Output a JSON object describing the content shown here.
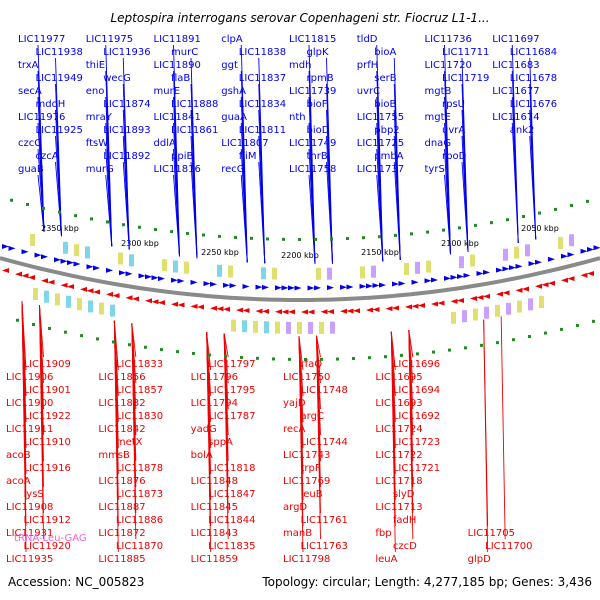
{
  "title": "Leptospira interrogans serovar Copenhageni str. Fiocruz L1-1...",
  "footer": {
    "accession": "Accession: NC_005823",
    "summary": "Topology: circular; Length: 4,277,185 bp; Genes: 3,436"
  },
  "colors": {
    "forward_strand": "#0000ee",
    "reverse_strand": "#ee0000",
    "rna_label": "#ee66cc",
    "backbone": "#8a8a8a",
    "tick_green": "#228b22"
  },
  "scale_labels": [
    "2350 kbp",
    "2300 kbp",
    "2250 kbp",
    "2200 kbp",
    "2150 kbp",
    "2100 kbp",
    "2050 kbp"
  ],
  "top_labels": [
    "LIC11977",
    "LIC11938",
    "trxA",
    "LIC11949",
    "secA",
    "mdoH",
    "LIC11976",
    "LIC11925",
    "czcC",
    "czcA",
    "guaB",
    "LIC11975",
    "LIC11936",
    "thiE",
    "wecG",
    "eno",
    "LIC11874",
    "mraY",
    "LIC11893",
    "ftsW",
    "LIC11892",
    "murG",
    "LIC11891",
    "murC",
    "LIC11890",
    "flaB",
    "murE",
    "LIC11888",
    "LIC11841",
    "LIC11861",
    "ddlA",
    "ppiB",
    "LIC11816",
    "clpA",
    "LIC11838",
    "ggt",
    "LIC11837",
    "gshA",
    "LIC11834",
    "guaA",
    "LIC11811",
    "LIC11807",
    "fliM",
    "recG",
    "LIC11815",
    "glpK",
    "mdh",
    "rpmB",
    "LIC11739",
    "bioF",
    "nth",
    "bioD",
    "LIC11749",
    "thrB",
    "LIC11758",
    "tldD",
    "bioA",
    "prfH",
    "serB",
    "uvrC",
    "bioB",
    "LIC11755",
    "pbp2",
    "LIC11725",
    "pmbA",
    "LIC11737",
    "LIC11736",
    "LIC11711",
    "LIC11720",
    "LIC11719",
    "mgtB",
    "rpsU",
    "mgtE",
    "uvrA",
    "dnaG",
    "rpoD",
    "tyrS",
    "LIC11697",
    "LIC11684",
    "LIC11683",
    "LIC11678",
    "LIC11677",
    "LIC11676",
    "LIC11674",
    "ank2"
  ],
  "bottom_labels": [
    "LIC11935",
    "LIC11920",
    "LIC11931",
    "LIC11912",
    "LIC11908",
    "lysS",
    "acoA",
    "LIC11916",
    "acoB",
    "LIC11910",
    "LIC11911",
    "LIC11922",
    "LIC11900",
    "LIC11901",
    "LIC11906",
    "LIC11909",
    "LIC11885",
    "LIC11870",
    "LIC11872",
    "LIC11886",
    "LIC11887",
    "LIC11873",
    "LIC11876",
    "LIC11878",
    "mmsB",
    "metX",
    "LIC11842",
    "LIC11830",
    "LIC11832",
    "LIC11857",
    "LIC11856",
    "LIC11833",
    "LIC11859",
    "LIC11835",
    "LIC11843",
    "LIC11844",
    "LIC11845",
    "LIC11847",
    "LIC11848",
    "LIC11818",
    "bolA",
    "sppA",
    "yadG",
    "LIC11787",
    "LIC11794",
    "LIC11795",
    "LIC11796",
    "LIC11797",
    "LIC11798",
    "LIC11763",
    "manB",
    "LIC11761",
    "argD",
    "leuB",
    "LIC11769",
    "trpF",
    "LIC11743",
    "LIC11744",
    "recA",
    "argC",
    "yajD",
    "LIC11748",
    "LIC11750",
    "rfaQ",
    "leuA",
    "czcD",
    "fbp",
    "fadH",
    "LIC11713",
    "slyD",
    "LIC11718",
    "LIC11721",
    "LIC11722",
    "LIC11723",
    "LIC11724",
    "LIC11692",
    "LIC11693",
    "LIC11694",
    "LIC11695",
    "LIC11696",
    "glpD",
    "LIC11700",
    "LIC11705"
  ],
  "rna_labels": [
    "tRNA-Leu-GAG"
  ]
}
